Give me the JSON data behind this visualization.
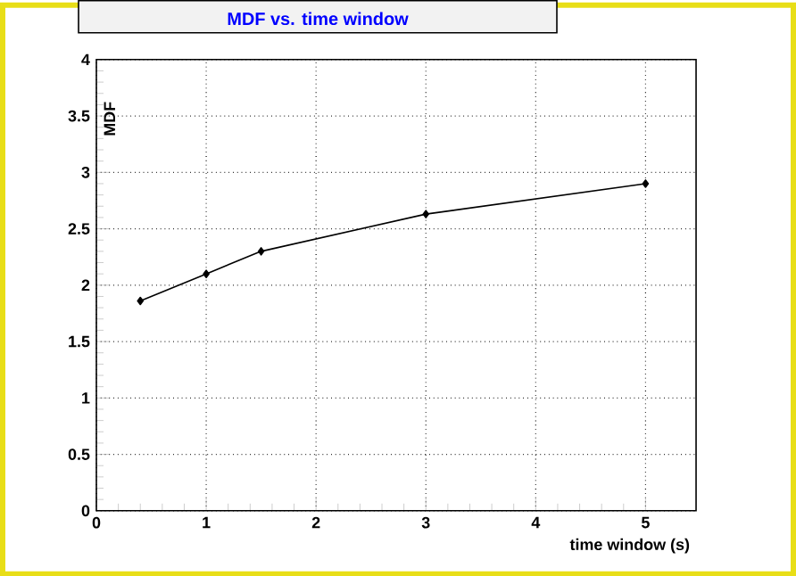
{
  "chart_data": {
    "type": "line",
    "title": "MDF vs. time window",
    "xlabel": "time window (s)",
    "ylabel": "MDF",
    "x": [
      0.4,
      1,
      1.5,
      3,
      5
    ],
    "values": [
      1.86,
      2.1,
      2.3,
      2.63,
      2.9
    ],
    "color": "#000000",
    "xlim": [
      0,
      5.46
    ],
    "ylim": [
      0,
      4
    ],
    "xticks": [
      0,
      1,
      2,
      3,
      4,
      5
    ],
    "yticks": [
      0,
      0.5,
      1,
      1.5,
      2,
      2.5,
      3,
      3.5,
      4
    ],
    "grid": true,
    "marker": "diamond",
    "line_style": "solid"
  }
}
